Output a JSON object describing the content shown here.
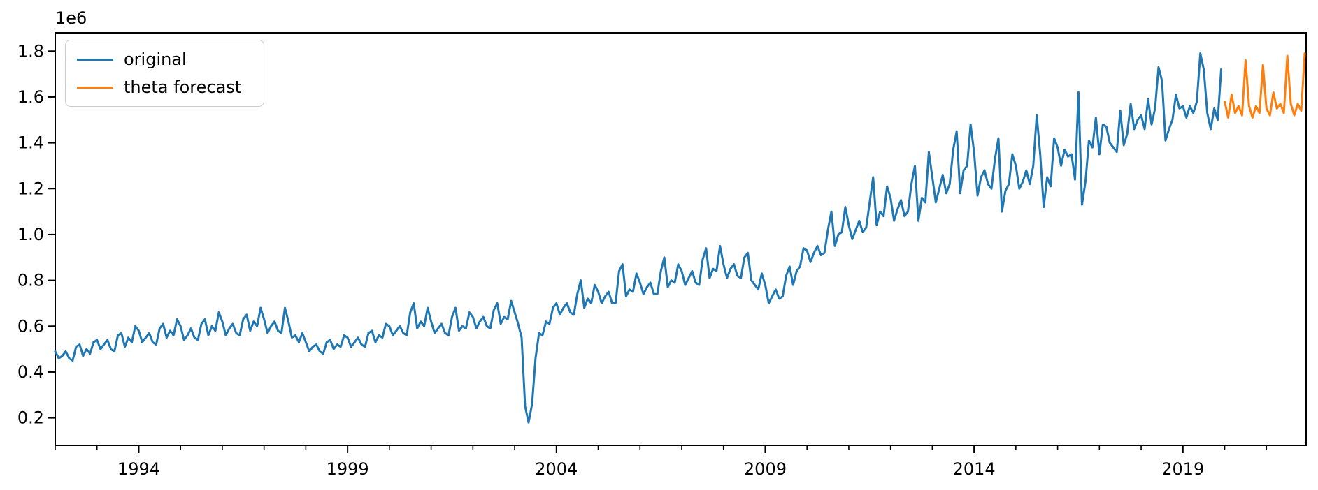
{
  "figure": {
    "background_color": "#ffffff",
    "axes_edge_color": "#000000"
  },
  "legend": {
    "position": "upper-left",
    "entries": [
      {
        "label": "original",
        "color": "#1f77b4"
      },
      {
        "label": "theta forecast",
        "color": "#ff7f0e"
      }
    ]
  },
  "chart_data": {
    "type": "line",
    "title": "",
    "xlabel": "",
    "ylabel": "",
    "grid": false,
    "legend_position": "upper-left",
    "y_scale_label": "1e6",
    "xlim": [
      1992.0,
      2021.95
    ],
    "ylim": [
      0.08,
      1.88
    ],
    "x_ticks_major": [
      1994,
      1999,
      2004,
      2009,
      2014,
      2019
    ],
    "x_tick_labels": [
      "1994",
      "1999",
      "2004",
      "2009",
      "2014",
      "2019"
    ],
    "x_minor_tick_step_years": 1,
    "y_ticks": [
      0.2,
      0.4,
      0.6,
      0.8,
      1.0,
      1.2,
      1.4,
      1.6,
      1.8
    ],
    "y_tick_labels": [
      "0.2",
      "0.4",
      "0.6",
      "0.8",
      "1.0",
      "1.2",
      "1.4",
      "1.6",
      "1.8"
    ],
    "series": [
      {
        "name": "original",
        "color": "#1f77b4",
        "line_width": 3,
        "frequency": "monthly",
        "start_year": 1992,
        "start_month": 1,
        "values_1e6": [
          0.49,
          0.46,
          0.47,
          0.49,
          0.46,
          0.45,
          0.51,
          0.52,
          0.47,
          0.5,
          0.48,
          0.53,
          0.54,
          0.5,
          0.52,
          0.54,
          0.5,
          0.49,
          0.56,
          0.57,
          0.51,
          0.55,
          0.53,
          0.6,
          0.58,
          0.53,
          0.55,
          0.57,
          0.53,
          0.52,
          0.59,
          0.61,
          0.55,
          0.58,
          0.56,
          0.63,
          0.6,
          0.54,
          0.56,
          0.59,
          0.55,
          0.54,
          0.61,
          0.63,
          0.56,
          0.6,
          0.58,
          0.66,
          0.62,
          0.56,
          0.59,
          0.61,
          0.57,
          0.56,
          0.63,
          0.65,
          0.58,
          0.62,
          0.6,
          0.68,
          0.63,
          0.57,
          0.6,
          0.62,
          0.58,
          0.57,
          0.68,
          0.62,
          0.55,
          0.56,
          0.53,
          0.57,
          0.53,
          0.49,
          0.51,
          0.52,
          0.49,
          0.48,
          0.53,
          0.54,
          0.5,
          0.52,
          0.51,
          0.56,
          0.55,
          0.51,
          0.53,
          0.55,
          0.52,
          0.51,
          0.57,
          0.58,
          0.53,
          0.56,
          0.55,
          0.61,
          0.6,
          0.56,
          0.58,
          0.6,
          0.57,
          0.56,
          0.66,
          0.7,
          0.59,
          0.62,
          0.6,
          0.68,
          0.62,
          0.57,
          0.59,
          0.61,
          0.57,
          0.56,
          0.64,
          0.68,
          0.58,
          0.6,
          0.59,
          0.66,
          0.64,
          0.59,
          0.62,
          0.64,
          0.6,
          0.59,
          0.67,
          0.7,
          0.61,
          0.64,
          0.63,
          0.71,
          0.66,
          0.61,
          0.55,
          0.25,
          0.18,
          0.26,
          0.46,
          0.57,
          0.56,
          0.62,
          0.61,
          0.68,
          0.7,
          0.65,
          0.68,
          0.7,
          0.66,
          0.65,
          0.74,
          0.8,
          0.68,
          0.72,
          0.7,
          0.78,
          0.75,
          0.7,
          0.73,
          0.75,
          0.7,
          0.7,
          0.84,
          0.87,
          0.73,
          0.76,
          0.75,
          0.83,
          0.79,
          0.74,
          0.77,
          0.79,
          0.74,
          0.74,
          0.84,
          0.9,
          0.77,
          0.8,
          0.79,
          0.87,
          0.84,
          0.78,
          0.81,
          0.84,
          0.79,
          0.78,
          0.89,
          0.94,
          0.81,
          0.85,
          0.84,
          0.95,
          0.87,
          0.81,
          0.85,
          0.87,
          0.82,
          0.81,
          0.9,
          0.92,
          0.8,
          0.78,
          0.76,
          0.83,
          0.78,
          0.7,
          0.73,
          0.76,
          0.72,
          0.73,
          0.82,
          0.86,
          0.78,
          0.84,
          0.86,
          0.94,
          0.93,
          0.88,
          0.92,
          0.95,
          0.91,
          0.92,
          1.02,
          1.1,
          0.95,
          1.0,
          1.01,
          1.12,
          1.04,
          0.98,
          1.02,
          1.06,
          1.01,
          1.03,
          1.14,
          1.25,
          1.04,
          1.1,
          1.08,
          1.21,
          1.16,
          1.06,
          1.11,
          1.15,
          1.08,
          1.1,
          1.22,
          1.3,
          1.06,
          1.16,
          1.14,
          1.36,
          1.25,
          1.14,
          1.2,
          1.26,
          1.18,
          1.22,
          1.37,
          1.45,
          1.18,
          1.28,
          1.3,
          1.48,
          1.36,
          1.17,
          1.25,
          1.28,
          1.22,
          1.2,
          1.33,
          1.42,
          1.1,
          1.19,
          1.22,
          1.35,
          1.3,
          1.2,
          1.23,
          1.28,
          1.22,
          1.3,
          1.52,
          1.35,
          1.12,
          1.25,
          1.21,
          1.42,
          1.38,
          1.3,
          1.37,
          1.34,
          1.35,
          1.24,
          1.62,
          1.13,
          1.23,
          1.41,
          1.38,
          1.51,
          1.35,
          1.48,
          1.47,
          1.4,
          1.38,
          1.36,
          1.54,
          1.39,
          1.44,
          1.57,
          1.46,
          1.5,
          1.52,
          1.46,
          1.59,
          1.48,
          1.55,
          1.73,
          1.67,
          1.41,
          1.46,
          1.5,
          1.61,
          1.55,
          1.56,
          1.51,
          1.56,
          1.53,
          1.58,
          1.79,
          1.72,
          1.53,
          1.46,
          1.55,
          1.5,
          1.72
        ]
      },
      {
        "name": "theta forecast",
        "color": "#ff7f0e",
        "line_width": 3,
        "frequency": "monthly",
        "start_year": 2020,
        "start_month": 1,
        "values_1e6": [
          1.58,
          1.51,
          1.61,
          1.53,
          1.56,
          1.52,
          1.76,
          1.56,
          1.51,
          1.56,
          1.53,
          1.74,
          1.55,
          1.52,
          1.62,
          1.55,
          1.57,
          1.53,
          1.78,
          1.57,
          1.52,
          1.57,
          1.54,
          1.79
        ]
      }
    ]
  }
}
